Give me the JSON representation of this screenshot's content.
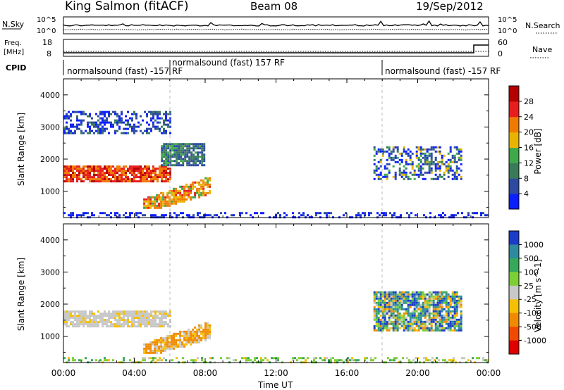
{
  "header": {
    "station": "King Salmon (fitACF)",
    "beam": "Beam 08",
    "date": "19/Sep/2012"
  },
  "noise_panel": {
    "left_label": "N.Sky",
    "right_label": "N.Search",
    "left_ticks": [
      "10^5",
      "10^0"
    ],
    "right_ticks": [
      "10^5",
      "10^0"
    ]
  },
  "freq_panel": {
    "left_label_1": "Freq.",
    "left_label_2": "[MHz]",
    "right_label": "Nave",
    "left_ticks": [
      "18",
      "8"
    ],
    "right_ticks": [
      "60",
      "0"
    ]
  },
  "cpid": {
    "label": "CPID",
    "segments": [
      {
        "text": "normalsound (fast) -157 RF"
      },
      {
        "text": "normalsound (fast) 157 RF"
      },
      {
        "text": "normalsound (fast) -157 RF"
      }
    ]
  },
  "axes": {
    "ylabel": "Slant Range [km]",
    "xlabel": "Time UT",
    "y_ticks": [
      "1000",
      "2000",
      "3000",
      "4000"
    ],
    "x_ticks": [
      "00:00",
      "04:00",
      "08:00",
      "12:00",
      "16:00",
      "20:00",
      "00:00"
    ]
  },
  "power_colorbar": {
    "label": "Power [dB]",
    "ticks": [
      "4",
      "8",
      "12",
      "16",
      "20",
      "24",
      "28"
    ],
    "colors": [
      "#0a1eff",
      "#2d4aa0",
      "#3a7a5a",
      "#3ea84a",
      "#e8b400",
      "#f07a00",
      "#e81e1e",
      "#b40000"
    ]
  },
  "velocity_colorbar": {
    "label": "Velocity [m s^-1]",
    "ticks": [
      "1000",
      "500",
      "100",
      "25",
      "-25",
      "-100",
      "-500",
      "-1000"
    ],
    "colors": [
      "#1a3cc8",
      "#2e8a9e",
      "#37a85a",
      "#7ccf35",
      "#c8c8c8",
      "#f5c000",
      "#f08a00",
      "#f04a00",
      "#e00000"
    ]
  },
  "chart_data": {
    "type": "heatmap",
    "title": "King Salmon (fitACF)   Beam 08   19/Sep/2012",
    "xlabel": "Time UT",
    "ylabel": "Slant Range [km]",
    "xlim": [
      "00:00",
      "24:00"
    ],
    "ylim": [
      180,
      4500
    ],
    "panels": [
      {
        "name": "Power [dB]",
        "scale": [
          0,
          30
        ],
        "regions": [
          {
            "t_start": 0.0,
            "t_end": 6.0,
            "range_km": [
              1300,
              1800
            ],
            "level": "24-28"
          },
          {
            "t_start": 0.0,
            "t_end": 6.0,
            "range_km": [
              2800,
              3500
            ],
            "level": "4-12"
          },
          {
            "t_start": 4.5,
            "t_end": 8.3,
            "range_km": [
              500,
              1500
            ],
            "level": "16-28"
          },
          {
            "t_start": 5.5,
            "t_end": 8.0,
            "range_km": [
              1800,
              2500
            ],
            "level": "8-16"
          },
          {
            "t_start": 17.5,
            "t_end": 22.5,
            "range_km": [
              1400,
              2400
            ],
            "level": "4-20"
          },
          {
            "t_start": 0.0,
            "t_end": 24.0,
            "range_km": [
              180,
              350
            ],
            "level": "4-8"
          }
        ]
      },
      {
        "name": "Velocity [m s^-1]",
        "scale": [
          -1000,
          1000
        ],
        "regions": [
          {
            "t_start": 0.0,
            "t_end": 6.0,
            "range_km": [
              1300,
              1800
            ],
            "level": "-25 to 25"
          },
          {
            "t_start": 4.5,
            "t_end": 8.3,
            "range_km": [
              500,
              1500
            ],
            "level": "-100 to -500"
          },
          {
            "t_start": 17.5,
            "t_end": 22.5,
            "range_km": [
              1200,
              2400
            ],
            "level": "-500 to 1000"
          },
          {
            "t_start": 0.0,
            "t_end": 24.0,
            "range_km": [
              180,
              350
            ],
            "level": "-100 to 100"
          }
        ]
      }
    ],
    "cpid_change_times": [
      "06:00",
      "18:00"
    ]
  }
}
